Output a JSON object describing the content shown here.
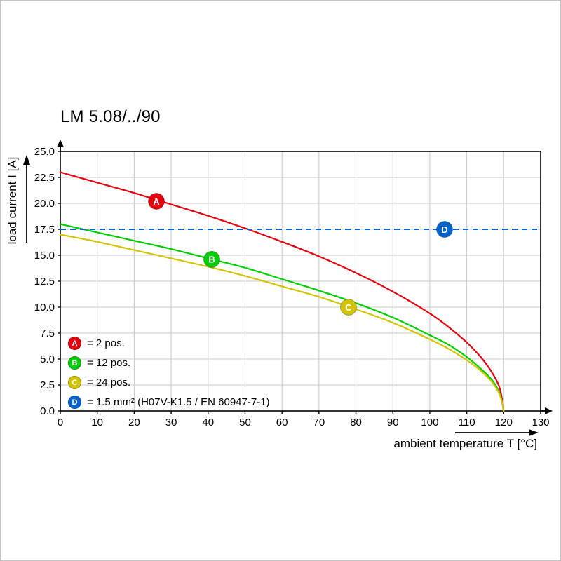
{
  "page": {
    "background": "#ffffff"
  },
  "chart_data": {
    "type": "line",
    "title": "LM 5.08/../90",
    "xlabel": "ambient temperature T [°C]",
    "ylabel": "load current I [A]",
    "xlim": [
      0,
      130
    ],
    "ylim": [
      0,
      25
    ],
    "xticks": [
      0,
      10,
      20,
      30,
      40,
      50,
      60,
      70,
      80,
      90,
      100,
      110,
      120,
      130
    ],
    "yticks": [
      0,
      2.5,
      5,
      7.5,
      10,
      12.5,
      15,
      17.5,
      20,
      22.5,
      25
    ],
    "grid": true,
    "grid_color": "#c9c9c9",
    "axis_color": "#000000",
    "legend_position": "bottom-left-inside",
    "series": [
      {
        "name": "A",
        "label": "= 2 pos.",
        "color": "#e3000f",
        "kind": "curve",
        "points": [
          [
            0,
            23.0
          ],
          [
            10,
            22.0
          ],
          [
            20,
            21.0
          ],
          [
            30,
            19.9
          ],
          [
            40,
            18.8
          ],
          [
            50,
            17.6
          ],
          [
            60,
            16.3
          ],
          [
            70,
            14.9
          ],
          [
            80,
            13.3
          ],
          [
            90,
            11.5
          ],
          [
            100,
            9.4
          ],
          [
            105,
            8.1
          ],
          [
            110,
            6.6
          ],
          [
            114,
            5.1
          ],
          [
            117,
            3.6
          ],
          [
            119,
            2.1
          ],
          [
            120,
            0
          ]
        ],
        "marker": {
          "x": 26,
          "y": 20.2
        }
      },
      {
        "name": "B",
        "label": "= 12 pos.",
        "color": "#00cc00",
        "kind": "curve",
        "points": [
          [
            0,
            18.0
          ],
          [
            10,
            17.2
          ],
          [
            20,
            16.4
          ],
          [
            30,
            15.6
          ],
          [
            40,
            14.7
          ],
          [
            50,
            13.8
          ],
          [
            60,
            12.7
          ],
          [
            70,
            11.6
          ],
          [
            80,
            10.4
          ],
          [
            90,
            9.0
          ],
          [
            100,
            7.3
          ],
          [
            105,
            6.4
          ],
          [
            110,
            5.2
          ],
          [
            114,
            4.0
          ],
          [
            117,
            2.9
          ],
          [
            119,
            1.6
          ],
          [
            120,
            0
          ]
        ],
        "marker": {
          "x": 41,
          "y": 14.6
        }
      },
      {
        "name": "C",
        "label": "= 24 pos.",
        "color": "#d2c400",
        "kind": "curve",
        "points": [
          [
            0,
            17.0
          ],
          [
            10,
            16.3
          ],
          [
            20,
            15.5
          ],
          [
            30,
            14.7
          ],
          [
            40,
            13.9
          ],
          [
            50,
            13.0
          ],
          [
            60,
            12.0
          ],
          [
            70,
            11.0
          ],
          [
            80,
            9.8
          ],
          [
            90,
            8.5
          ],
          [
            100,
            6.9
          ],
          [
            105,
            6.0
          ],
          [
            110,
            4.9
          ],
          [
            114,
            3.8
          ],
          [
            117,
            2.7
          ],
          [
            119,
            1.5
          ],
          [
            120,
            0
          ]
        ],
        "marker": {
          "x": 78,
          "y": 10.0
        }
      },
      {
        "name": "D",
        "label": "= 1.5 mm² (H07V-K1.5 / EN 60947-7-1)",
        "color": "#0063cc",
        "kind": "hline",
        "dashed": true,
        "y": 17.5,
        "marker": {
          "x": 104,
          "y": 17.5
        }
      }
    ]
  }
}
